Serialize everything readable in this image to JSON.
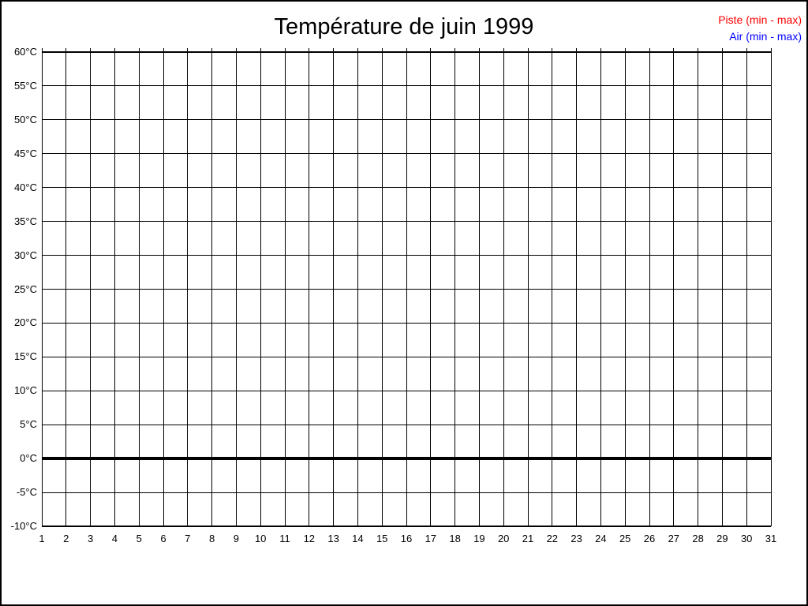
{
  "page": {
    "background": "#ffffff",
    "border_color": "#000000"
  },
  "legend": {
    "items": [
      {
        "label": "Piste (min - max)",
        "color": "#ff0000"
      },
      {
        "label": "Air (min - max)",
        "color": "#0000ff"
      }
    ]
  },
  "chart_data": {
    "type": "line",
    "title": "Température de juin 1999",
    "xlabel": "",
    "ylabel": "",
    "xlim": [
      1,
      31
    ],
    "ylim": [
      -10,
      60
    ],
    "grid": true,
    "legend_position": "top-right",
    "axis_color": "#000000",
    "zero_line_value": 0,
    "x_values": [
      1,
      2,
      3,
      4,
      5,
      6,
      7,
      8,
      9,
      10,
      11,
      12,
      13,
      14,
      15,
      16,
      17,
      18,
      19,
      20,
      21,
      22,
      23,
      24,
      25,
      26,
      27,
      28,
      29,
      30,
      31
    ],
    "x_tick_labels": [
      "1",
      "2",
      "3",
      "4",
      "5",
      "6",
      "7",
      "8",
      "9",
      "10",
      "11",
      "12",
      "13",
      "14",
      "15",
      "16",
      "17",
      "18",
      "19",
      "20",
      "21",
      "22",
      "23",
      "24",
      "25",
      "26",
      "27",
      "28",
      "29",
      "30",
      "31"
    ],
    "y_tick_values": [
      60,
      55,
      50,
      45,
      40,
      35,
      30,
      25,
      20,
      15,
      10,
      5,
      0,
      -5,
      -10
    ],
    "y_tick_labels": [
      "60°C",
      "55°C",
      "50°C",
      "45°C",
      "40°C",
      "35°C",
      "30°C",
      "25°C",
      "20°C",
      "15°C",
      "10°C",
      "5°C",
      "0°C",
      "-5°C",
      "-10°C"
    ],
    "series": [
      {
        "name": "Piste (min - max)",
        "color": "#ff0000",
        "values": []
      },
      {
        "name": "Air (min - max)",
        "color": "#0000ff",
        "values": []
      }
    ]
  }
}
